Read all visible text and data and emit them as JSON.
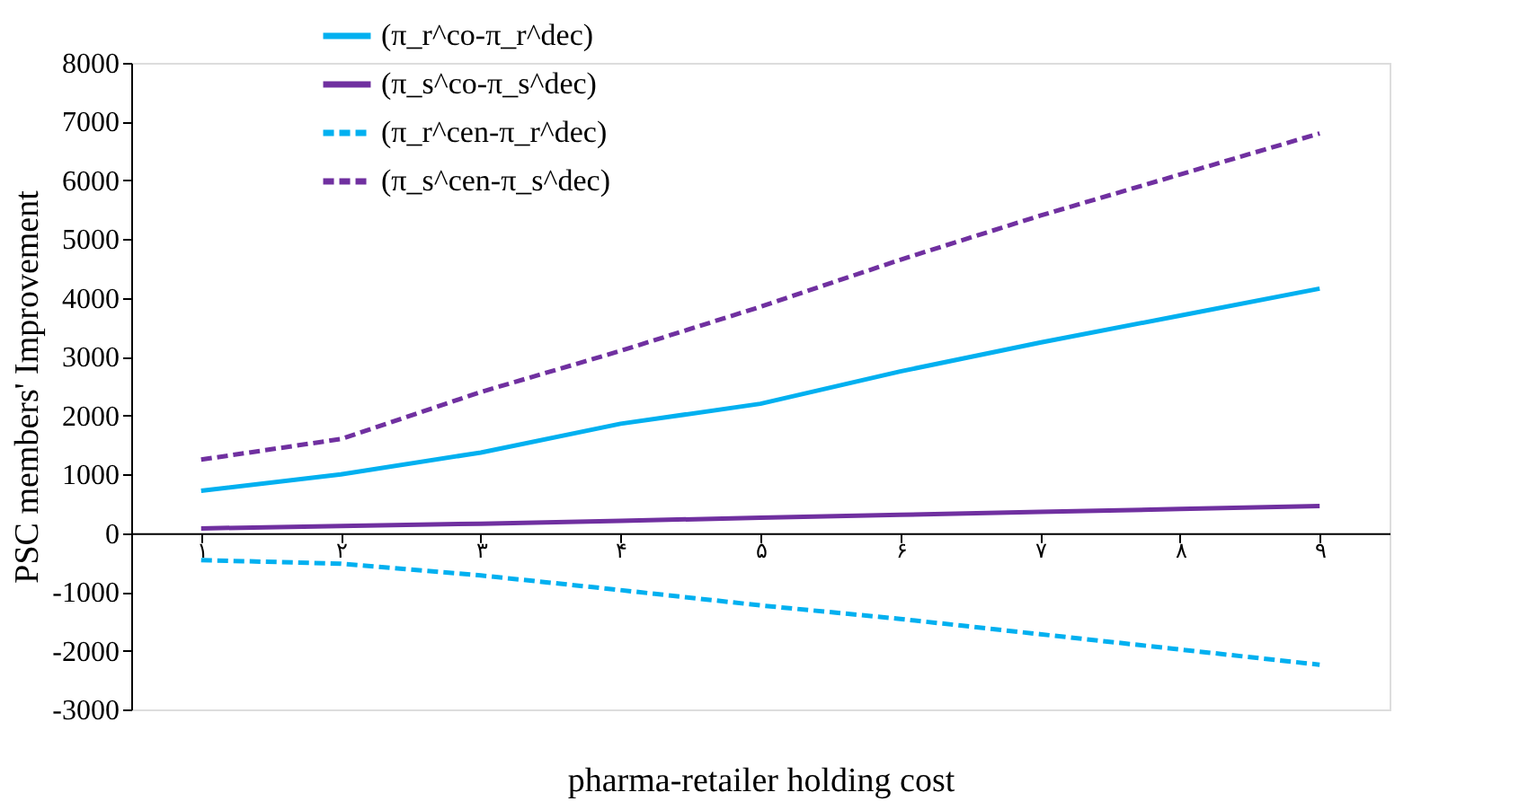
{
  "chart_data": {
    "type": "line",
    "xlabel": "pharma-retailer holding cost",
    "ylabel": "PSC members' Improvement",
    "categories": [
      "۱",
      "۲",
      "۳",
      "۴",
      "۵",
      "۶",
      "۷",
      "۸",
      "۹"
    ],
    "series": [
      {
        "name": "(π_r^co-π_r^dec)",
        "color": "#00b0f0",
        "line_style": "solid",
        "values": [
          720,
          1000,
          1370,
          1860,
          2200,
          2750,
          3240,
          3700,
          4160
        ]
      },
      {
        "name": "(π_s^co-π_s^dec)",
        "color": "#7030a0",
        "line_style": "solid",
        "values": [
          80,
          120,
          160,
          210,
          260,
          310,
          360,
          410,
          460
        ]
      },
      {
        "name": "(π_r^cen-π_r^dec)",
        "color": "#00b0f0",
        "line_style": "dashed",
        "values": [
          -460,
          -520,
          -720,
          -970,
          -1230,
          -1460,
          -1720,
          -1980,
          -2240
        ]
      },
      {
        "name": "(π_s^cen-π_s^dec)",
        "color": "#7030a0",
        "line_style": "dashed",
        "values": [
          1250,
          1600,
          2400,
          3100,
          3850,
          4650,
          5400,
          6100,
          6800
        ]
      }
    ],
    "ylim": [
      -3000,
      8000
    ],
    "yticks": [
      -3000,
      -2000,
      -1000,
      0,
      1000,
      2000,
      3000,
      4000,
      5000,
      6000,
      7000,
      8000
    ],
    "grid": false,
    "legend": "top",
    "marker": "none"
  }
}
